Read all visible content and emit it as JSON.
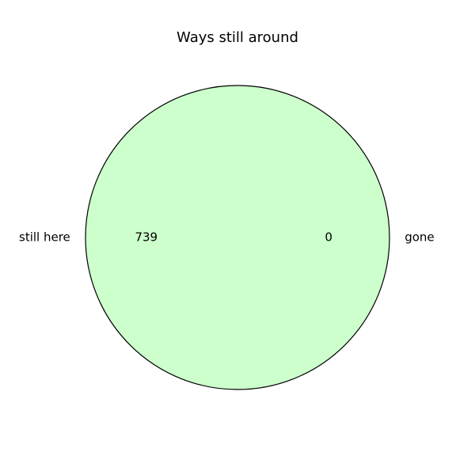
{
  "chart_data": {
    "type": "pie",
    "title": "Ways still around",
    "categories": [
      "still here",
      "gone"
    ],
    "values": [
      739,
      0
    ],
    "colors": [
      "#ccffcc",
      "#ffcccc"
    ],
    "edge_color": "#000000",
    "legend": "none"
  }
}
